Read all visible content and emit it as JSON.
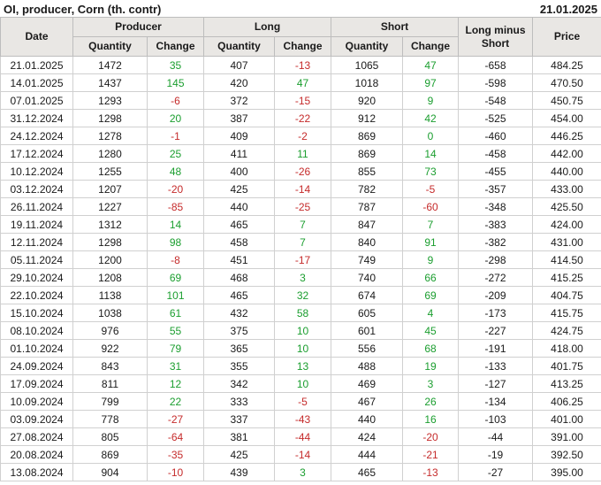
{
  "header": {
    "title": "OI, producer, Corn (th. contr)",
    "date": "21.01.2025"
  },
  "table": {
    "group_columns": [
      {
        "label": "Date"
      },
      {
        "label": "Producer"
      },
      {
        "label": "Long"
      },
      {
        "label": "Short"
      },
      {
        "label": "Long minus Short"
      },
      {
        "label": "Price"
      }
    ],
    "sub_columns": [
      "Quantity",
      "Change",
      "Quantity",
      "Change",
      "Quantity",
      "Change"
    ]
  },
  "colors": {
    "positive_change": "#1b9e2f",
    "negative_change": "#c52b2b",
    "header_bg": "#e9e7e4",
    "border": "#d0d0d0",
    "text": "#1a1a1a"
  },
  "chart_data": {
    "type": "table",
    "title": "OI, producer, Corn (th. contr)",
    "as_of_date": "21.01.2025",
    "columns": [
      "Date",
      "Producer Quantity",
      "Producer Change",
      "Long Quantity",
      "Long Change",
      "Short Quantity",
      "Short Change",
      "Long minus Short",
      "Price"
    ],
    "rows": [
      [
        "21.01.2025",
        1472,
        35,
        407,
        -13,
        1065,
        47,
        -658,
        "484.25"
      ],
      [
        "14.01.2025",
        1437,
        145,
        420,
        47,
        1018,
        97,
        -598,
        "470.50"
      ],
      [
        "07.01.2025",
        1293,
        -6,
        372,
        -15,
        920,
        9,
        -548,
        "450.75"
      ],
      [
        "31.12.2024",
        1298,
        20,
        387,
        -22,
        912,
        42,
        -525,
        "454.00"
      ],
      [
        "24.12.2024",
        1278,
        -1,
        409,
        -2,
        869,
        0,
        -460,
        "446.25"
      ],
      [
        "17.12.2024",
        1280,
        25,
        411,
        11,
        869,
        14,
        -458,
        "442.00"
      ],
      [
        "10.12.2024",
        1255,
        48,
        400,
        -26,
        855,
        73,
        -455,
        "440.00"
      ],
      [
        "03.12.2024",
        1207,
        -20,
        425,
        -14,
        782,
        -5,
        -357,
        "433.00"
      ],
      [
        "26.11.2024",
        1227,
        -85,
        440,
        -25,
        787,
        -60,
        -348,
        "425.50"
      ],
      [
        "19.11.2024",
        1312,
        14,
        465,
        7,
        847,
        7,
        -383,
        "424.00"
      ],
      [
        "12.11.2024",
        1298,
        98,
        458,
        7,
        840,
        91,
        -382,
        "431.00"
      ],
      [
        "05.11.2024",
        1200,
        -8,
        451,
        -17,
        749,
        9,
        -298,
        "414.50"
      ],
      [
        "29.10.2024",
        1208,
        69,
        468,
        3,
        740,
        66,
        -272,
        "415.25"
      ],
      [
        "22.10.2024",
        1138,
        101,
        465,
        32,
        674,
        69,
        -209,
        "404.75"
      ],
      [
        "15.10.2024",
        1038,
        61,
        432,
        58,
        605,
        4,
        -173,
        "415.75"
      ],
      [
        "08.10.2024",
        976,
        55,
        375,
        10,
        601,
        45,
        -227,
        "424.75"
      ],
      [
        "01.10.2024",
        922,
        79,
        365,
        10,
        556,
        68,
        -191,
        "418.00"
      ],
      [
        "24.09.2024",
        843,
        31,
        355,
        13,
        488,
        19,
        -133,
        "401.75"
      ],
      [
        "17.09.2024",
        811,
        12,
        342,
        10,
        469,
        3,
        -127,
        "413.25"
      ],
      [
        "10.09.2024",
        799,
        22,
        333,
        -5,
        467,
        26,
        -134,
        "406.25"
      ],
      [
        "03.09.2024",
        778,
        -27,
        337,
        -43,
        440,
        16,
        -103,
        "401.00"
      ],
      [
        "27.08.2024",
        805,
        -64,
        381,
        -44,
        424,
        -20,
        -44,
        "391.00"
      ],
      [
        "20.08.2024",
        869,
        -35,
        425,
        -14,
        444,
        -21,
        -19,
        "392.50"
      ],
      [
        "13.08.2024",
        904,
        -10,
        439,
        3,
        465,
        -13,
        -27,
        "395.00"
      ]
    ]
  }
}
